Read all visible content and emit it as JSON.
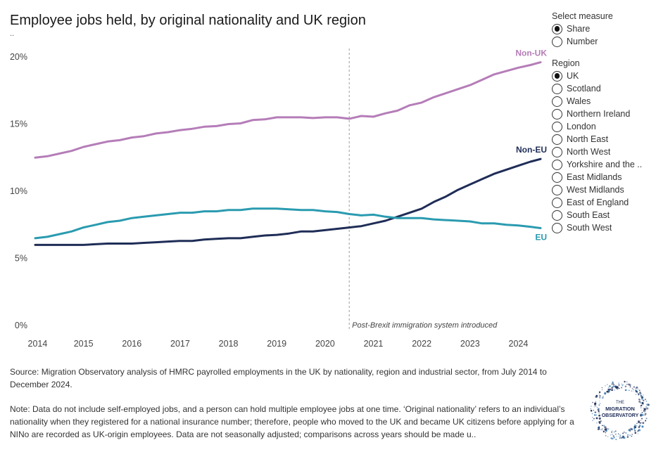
{
  "title": "Employee jobs held, by original nationality and UK region",
  "subtitle": "..",
  "measure": {
    "title": "Select measure",
    "options": [
      "Share",
      "Number"
    ],
    "selected": "Share"
  },
  "region": {
    "title": "Region",
    "options": [
      "UK",
      "Scotland",
      "Wales",
      "Northern Ireland",
      "London",
      "North East",
      "North West",
      "Yorkshire and the ..",
      "East Midlands",
      "West Midlands",
      "East of England",
      "South East",
      "South West"
    ],
    "selected": "UK"
  },
  "source": "Source: Migration Observatory analysis of HMRC payrolled employments in the UK by nationality, region and industrial sector, from July 2014 to December 2024.",
  "note": "Note: Data do not include self-employed jobs, and a person can hold multiple employee jobs at one time. ‘Original nationality’ refers to an individual’s nationality when they registered for a national insurance number; therefore, people who moved to the UK and became UK citizens before applying for a NINo are recorded as UK-origin employees. Data are not seasonally adjusted; comparisons across years should be made u..",
  "logo": {
    "text": "THE MIGRATION OBSERVATORY"
  },
  "colors": {
    "non_uk": "#b57db8",
    "non_eu": "#1f2d57",
    "eu": "#2a9bb0",
    "reference": "#999999"
  },
  "chart_data": {
    "type": "line",
    "title": "Employee jobs held, by original nationality and UK region",
    "xlabel": "",
    "ylabel": "",
    "ylim": [
      0,
      20
    ],
    "xlim": [
      2014.5,
      2024.96
    ],
    "y_ticks": [
      0,
      5,
      10,
      15,
      20
    ],
    "y_tick_labels": [
      "0%",
      "5%",
      "10%",
      "15%",
      "20%"
    ],
    "x_ticks": [
      2014.55,
      2015.5,
      2016.5,
      2017.5,
      2018.5,
      2019.5,
      2020.5,
      2021.5,
      2022.5,
      2023.5,
      2024.5
    ],
    "x_tick_labels": [
      "2014",
      "2015",
      "2016",
      "2017",
      "2018",
      "2019",
      "2020",
      "2021",
      "2022",
      "2023",
      "2024"
    ],
    "grid": false,
    "reference_line": {
      "x": 2021.0,
      "label": "Post-Brexit immigration system introduced"
    },
    "series": [
      {
        "name": "Non-UK",
        "color": "#b57db8",
        "x": [
          2014.5,
          2014.75,
          2015.0,
          2015.25,
          2015.5,
          2015.75,
          2016.0,
          2016.25,
          2016.5,
          2016.75,
          2017.0,
          2017.25,
          2017.5,
          2017.75,
          2018.0,
          2018.25,
          2018.5,
          2018.75,
          2019.0,
          2019.25,
          2019.5,
          2019.75,
          2020.0,
          2020.25,
          2020.5,
          2020.75,
          2021.0,
          2021.25,
          2021.5,
          2021.75,
          2022.0,
          2022.25,
          2022.5,
          2022.75,
          2023.0,
          2023.25,
          2023.5,
          2023.75,
          2024.0,
          2024.25,
          2024.5,
          2024.75,
          2024.96
        ],
        "y": [
          12.5,
          12.6,
          12.8,
          13.0,
          13.3,
          13.5,
          13.7,
          13.8,
          14.0,
          14.1,
          14.3,
          14.4,
          14.55,
          14.65,
          14.8,
          14.85,
          15.0,
          15.05,
          15.3,
          15.35,
          15.5,
          15.5,
          15.5,
          15.45,
          15.5,
          15.5,
          15.4,
          15.6,
          15.55,
          15.8,
          16.0,
          16.4,
          16.6,
          17.0,
          17.3,
          17.6,
          17.9,
          18.3,
          18.7,
          18.95,
          19.2,
          19.4,
          19.6
        ]
      },
      {
        "name": "Non-EU",
        "color": "#1f2d57",
        "x": [
          2014.5,
          2014.75,
          2015.0,
          2015.25,
          2015.5,
          2015.75,
          2016.0,
          2016.25,
          2016.5,
          2016.75,
          2017.0,
          2017.25,
          2017.5,
          2017.75,
          2018.0,
          2018.25,
          2018.5,
          2018.75,
          2019.0,
          2019.25,
          2019.5,
          2019.75,
          2020.0,
          2020.25,
          2020.5,
          2020.75,
          2021.0,
          2021.25,
          2021.5,
          2021.75,
          2022.0,
          2022.25,
          2022.5,
          2022.75,
          2023.0,
          2023.25,
          2023.5,
          2023.75,
          2024.0,
          2024.25,
          2024.5,
          2024.75,
          2024.96
        ],
        "y": [
          6.0,
          6.0,
          6.0,
          6.0,
          6.0,
          6.05,
          6.1,
          6.1,
          6.1,
          6.15,
          6.2,
          6.25,
          6.3,
          6.3,
          6.4,
          6.45,
          6.5,
          6.5,
          6.6,
          6.7,
          6.75,
          6.85,
          7.0,
          7.0,
          7.1,
          7.2,
          7.3,
          7.4,
          7.6,
          7.8,
          8.1,
          8.4,
          8.7,
          9.2,
          9.6,
          10.1,
          10.5,
          10.9,
          11.3,
          11.6,
          11.9,
          12.2,
          12.4
        ]
      },
      {
        "name": "EU",
        "color": "#2a9bb0",
        "x": [
          2014.5,
          2014.75,
          2015.0,
          2015.25,
          2015.5,
          2015.75,
          2016.0,
          2016.25,
          2016.5,
          2016.75,
          2017.0,
          2017.25,
          2017.5,
          2017.75,
          2018.0,
          2018.25,
          2018.5,
          2018.75,
          2019.0,
          2019.25,
          2019.5,
          2019.75,
          2020.0,
          2020.25,
          2020.5,
          2020.75,
          2021.0,
          2021.25,
          2021.5,
          2021.75,
          2022.0,
          2022.25,
          2022.5,
          2022.75,
          2023.0,
          2023.25,
          2023.5,
          2023.75,
          2024.0,
          2024.25,
          2024.5,
          2024.75,
          2024.96
        ],
        "y": [
          6.5,
          6.6,
          6.8,
          7.0,
          7.3,
          7.5,
          7.7,
          7.8,
          8.0,
          8.1,
          8.2,
          8.3,
          8.4,
          8.4,
          8.5,
          8.5,
          8.6,
          8.6,
          8.7,
          8.7,
          8.7,
          8.65,
          8.6,
          8.6,
          8.5,
          8.45,
          8.3,
          8.2,
          8.25,
          8.1,
          8.0,
          8.0,
          8.0,
          7.9,
          7.85,
          7.8,
          7.75,
          7.6,
          7.6,
          7.5,
          7.45,
          7.35,
          7.25
        ]
      }
    ]
  }
}
